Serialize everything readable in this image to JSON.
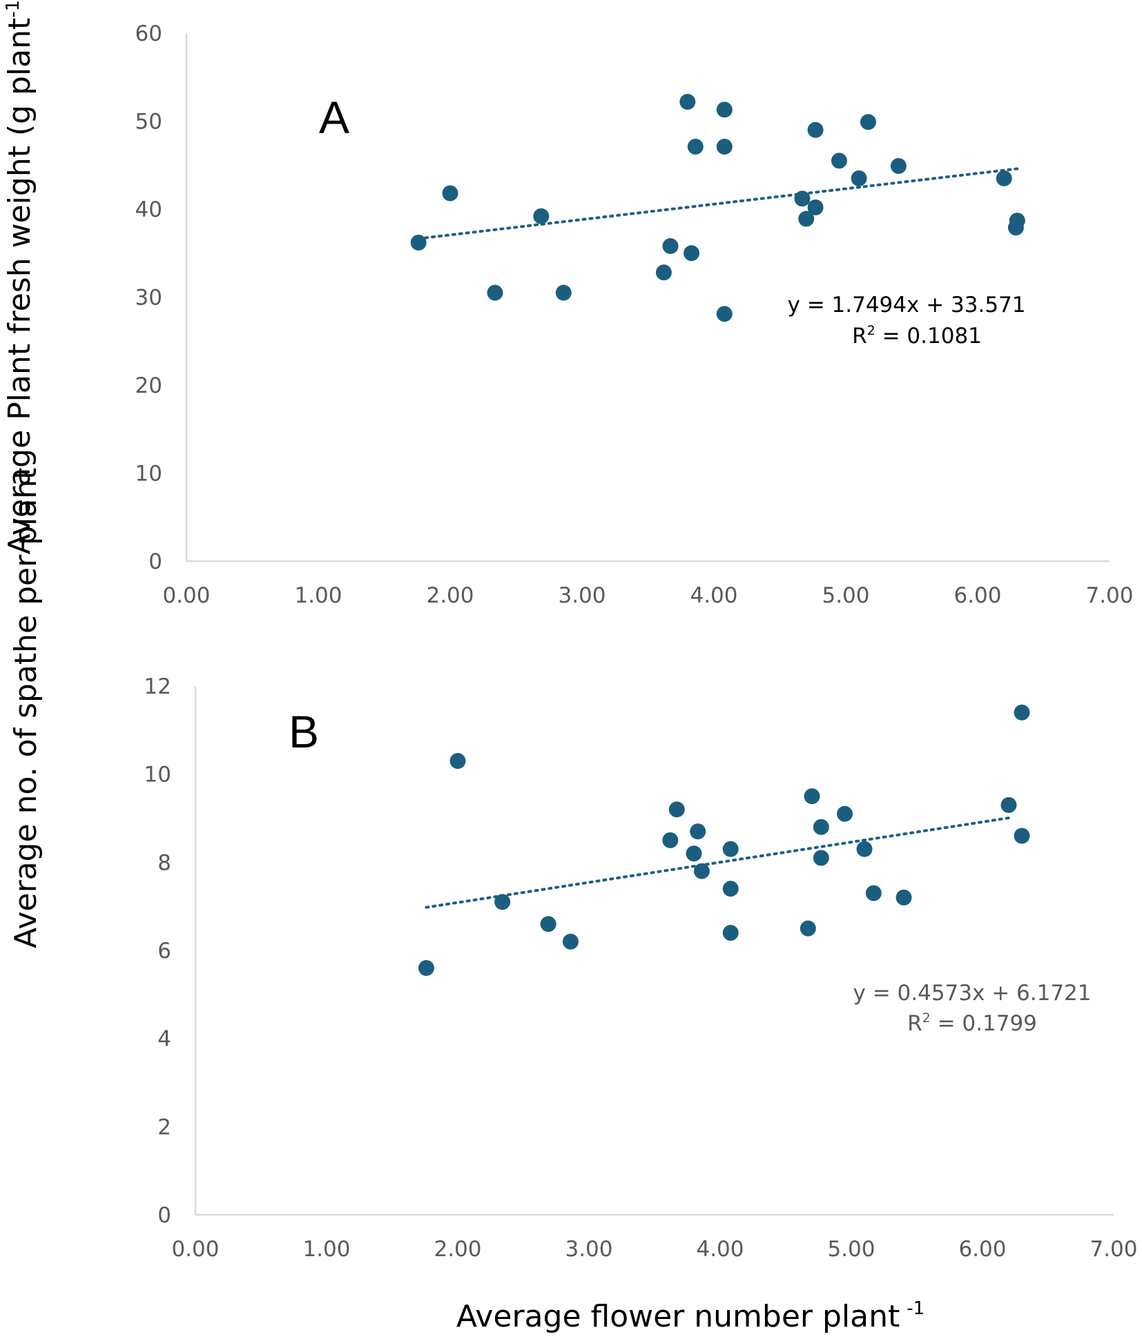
{
  "chart_data": [
    {
      "type": "scatter",
      "panel_label": "A",
      "xlabel": "",
      "ylabel": "Average Plant fresh weight (g plant",
      "ylabel_sup": "-1",
      "ylabel_close": ")",
      "xlim": [
        0,
        7
      ],
      "ylim": [
        0,
        60
      ],
      "x_ticks": [
        "0.00",
        "1.00",
        "2.00",
        "3.00",
        "4.00",
        "5.00",
        "6.00",
        "7.00"
      ],
      "y_ticks": [
        "0",
        "10",
        "20",
        "30",
        "40",
        "50",
        "60"
      ],
      "grid": false,
      "marker_color": "#1b5e80",
      "equation_color": "#000000",
      "series": [
        {
          "name": "points",
          "points": [
            [
              1.76,
              36.2
            ],
            [
              2.0,
              41.8
            ],
            [
              2.34,
              30.5
            ],
            [
              2.69,
              39.2
            ],
            [
              2.86,
              30.5
            ],
            [
              3.62,
              32.8
            ],
            [
              3.67,
              35.8
            ],
            [
              3.8,
              52.2
            ],
            [
              3.83,
              35.0
            ],
            [
              3.86,
              47.1
            ],
            [
              4.08,
              51.3
            ],
            [
              4.08,
              47.1
            ],
            [
              4.08,
              28.1
            ],
            [
              4.67,
              41.2
            ],
            [
              4.7,
              38.9
            ],
            [
              4.77,
              49.0
            ],
            [
              4.77,
              40.2
            ],
            [
              4.95,
              45.5
            ],
            [
              5.1,
              43.5
            ],
            [
              5.17,
              49.9
            ],
            [
              5.4,
              44.9
            ],
            [
              6.2,
              43.5
            ],
            [
              6.3,
              38.7
            ],
            [
              6.29,
              37.9
            ]
          ]
        }
      ],
      "trendline": {
        "slope": 1.7494,
        "intercept": 33.571,
        "x_range": [
          1.76,
          6.3
        ]
      },
      "equation": "y = 1.7494x + 33.571",
      "r2_prefix": "R",
      "r2_sup": "2",
      "r2_value": " = 0.1081"
    },
    {
      "type": "scatter",
      "panel_label": "B",
      "xlabel": "Average flower number plant",
      "xlabel_sup": "-1",
      "ylabel": "Average no. of spathe per plant",
      "xlim": [
        0,
        7
      ],
      "ylim": [
        0,
        12
      ],
      "x_ticks": [
        "0.00",
        "1.00",
        "2.00",
        "3.00",
        "4.00",
        "5.00",
        "6.00",
        "7.00"
      ],
      "y_ticks": [
        "0",
        "2",
        "4",
        "6",
        "8",
        "10",
        "12"
      ],
      "grid": false,
      "marker_color": "#1b5e80",
      "equation_color": "#595959",
      "series": [
        {
          "name": "points",
          "points": [
            [
              1.76,
              5.6
            ],
            [
              2.0,
              10.3
            ],
            [
              2.34,
              7.1
            ],
            [
              2.69,
              6.6
            ],
            [
              2.86,
              6.2
            ],
            [
              3.62,
              8.5
            ],
            [
              3.67,
              9.2
            ],
            [
              3.8,
              8.2
            ],
            [
              3.83,
              8.7
            ],
            [
              3.86,
              7.8
            ],
            [
              4.08,
              8.3
            ],
            [
              4.08,
              7.4
            ],
            [
              4.08,
              6.4
            ],
            [
              4.67,
              6.5
            ],
            [
              4.7,
              9.5
            ],
            [
              4.77,
              8.8
            ],
            [
              4.77,
              8.1
            ],
            [
              4.95,
              9.1
            ],
            [
              5.1,
              8.3
            ],
            [
              5.17,
              7.3
            ],
            [
              5.4,
              7.2
            ],
            [
              6.2,
              9.3
            ],
            [
              6.3,
              11.4
            ],
            [
              6.3,
              8.6
            ]
          ]
        }
      ],
      "trendline": {
        "slope": 0.4573,
        "intercept": 6.1721,
        "x_range": [
          1.76,
          6.2
        ]
      },
      "equation": "y = 0.4573x + 6.1721",
      "r2_prefix": "R",
      "r2_sup": "2",
      "r2_value": " = 0.1799"
    }
  ]
}
